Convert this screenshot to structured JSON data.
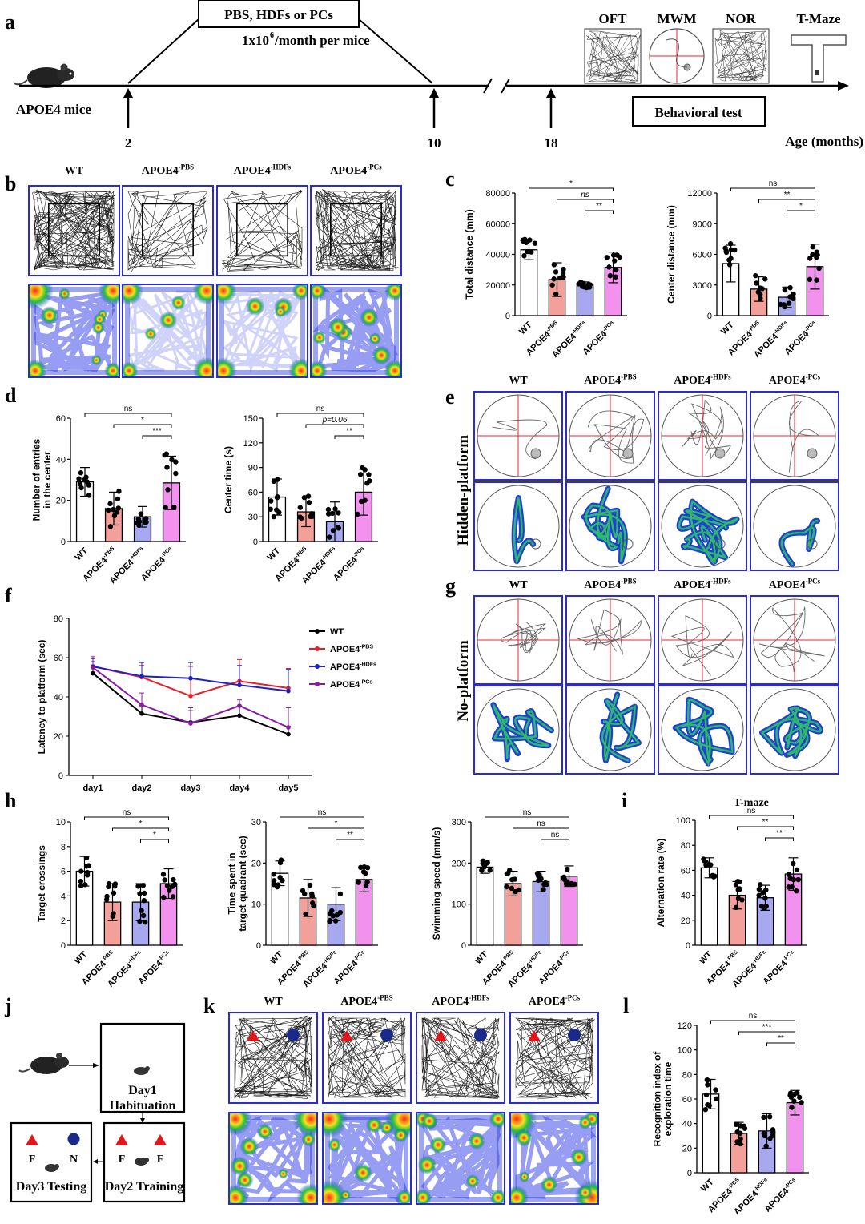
{
  "panel_letters": [
    "a",
    "b",
    "c",
    "d",
    "e",
    "f",
    "g",
    "h",
    "i",
    "j",
    "k",
    "l"
  ],
  "panel_a": {
    "mouse_label": "APOE4 mice",
    "treatment_line1": "PBS, HDFs or PCs",
    "treatment_dose": "1x10",
    "treatment_dose_exp": "6",
    "treatment_dose_rest": "/month per mice",
    "timepoints": [
      "2",
      "10",
      "18"
    ],
    "tests": [
      "OFT",
      "MWM",
      "NOR",
      "T-Maze"
    ],
    "behavior_label": "Behavioral test",
    "age_label": "Age (months)"
  },
  "group_names": {
    "wt": "WT",
    "base": "APOE4",
    "pbs": "-PBS",
    "hdf": "-HDFs",
    "pc": "-PCs"
  },
  "row_labels": {
    "e": "Hidden-platform",
    "g": "No-platform"
  },
  "panel_j": {
    "day1_a": "Day1",
    "day1_b": "Habituation",
    "day2": "Day2 Training",
    "day3": "Day3 Testing",
    "obj_f": "F",
    "obj_n": "N"
  },
  "colors": {
    "wt": "#ffffff",
    "pbs": "#f4a09a",
    "hdf": "#a7a8f0",
    "pc": "#f292ee",
    "frame": "#2a2ad6",
    "line_wt": "#000000",
    "line_pbs": "#e8202a",
    "line_hdf": "#2020c8",
    "line_pc": "#8a1aa6"
  },
  "chart_data": [
    {
      "id": "c1",
      "type": "bar",
      "ylabel": "Total distance (mm)",
      "ylim": [
        0,
        80000
      ],
      "yticks": [
        0,
        20000,
        40000,
        60000,
        80000
      ],
      "categories": [
        "WT",
        "APOE4-PBS",
        "APOE4-HDFs",
        "APOE4-PCs"
      ],
      "values": [
        43000,
        23500,
        20000,
        31500
      ],
      "errors": [
        6500,
        11000,
        2000,
        10000
      ],
      "significance": [
        {
          "from": 0,
          "to": 3,
          "label": "*"
        },
        {
          "from": 1,
          "to": 3,
          "label": "ns"
        },
        {
          "from": 2,
          "to": 3,
          "label": "**"
        }
      ]
    },
    {
      "id": "c2",
      "type": "bar",
      "ylabel": "Center distance (mm)",
      "ylim": [
        0,
        12000
      ],
      "yticks": [
        0,
        3000,
        6000,
        9000,
        12000
      ],
      "categories": [
        "WT",
        "APOE4-PBS",
        "APOE4-HDFs",
        "APOE4-PCs"
      ],
      "values": [
        5100,
        2600,
        1800,
        4800
      ],
      "errors": [
        1800,
        1200,
        1000,
        2200
      ],
      "significance": [
        {
          "from": 0,
          "to": 3,
          "label": "ns"
        },
        {
          "from": 1,
          "to": 3,
          "label": "**"
        },
        {
          "from": 2,
          "to": 3,
          "label": "*"
        }
      ]
    },
    {
      "id": "d1",
      "type": "bar",
      "ylabel": "Number of entries in the center",
      "ylim": [
        0,
        60
      ],
      "yticks": [
        0,
        20,
        40,
        60
      ],
      "categories": [
        "WT",
        "APOE4-PBS",
        "APOE4-HDFs",
        "APOE4-PCs"
      ],
      "values": [
        29,
        16,
        12,
        28.5
      ],
      "errors": [
        7,
        8,
        5,
        13
      ],
      "significance": [
        {
          "from": 0,
          "to": 3,
          "label": "ns"
        },
        {
          "from": 1,
          "to": 3,
          "label": "*"
        },
        {
          "from": 2,
          "to": 3,
          "label": "***"
        }
      ]
    },
    {
      "id": "d2",
      "type": "bar",
      "ylabel": "Center time (s)",
      "ylim": [
        0,
        150
      ],
      "yticks": [
        0,
        30,
        60,
        90,
        120,
        150
      ],
      "categories": [
        "WT",
        "APOE4-PBS",
        "APOE4-HDFs",
        "APOE4-PCs"
      ],
      "values": [
        54,
        36,
        24,
        60
      ],
      "errors": [
        22,
        18,
        24,
        28
      ],
      "significance": [
        {
          "from": 0,
          "to": 3,
          "label": "ns"
        },
        {
          "from": 1,
          "to": 3,
          "label": "p=0.06"
        },
        {
          "from": 2,
          "to": 3,
          "label": "**"
        }
      ]
    },
    {
      "id": "f",
      "type": "line",
      "xlabel": "",
      "ylabel": "Latency to platform (sec)",
      "ylim": [
        0,
        80
      ],
      "yticks": [
        0,
        20,
        40,
        60,
        80
      ],
      "x": [
        "day1",
        "day2",
        "day3",
        "day4",
        "day5"
      ],
      "series": [
        {
          "name": "WT",
          "values": [
            52,
            31.5,
            27,
            30.5,
            21
          ],
          "errors": [
            3,
            4,
            6,
            5,
            4
          ]
        },
        {
          "name": "APOE4-PBS",
          "values": [
            55.5,
            50,
            40.5,
            48,
            44.5
          ],
          "errors": [
            5,
            6,
            15,
            11,
            10
          ]
        },
        {
          "name": "APOE4-HDFs",
          "values": [
            55.5,
            50.5,
            49.5,
            46,
            43
          ],
          "errors": [
            4,
            7,
            8,
            10,
            11
          ]
        },
        {
          "name": "APOE4-PCs",
          "values": [
            55,
            36,
            26.5,
            35.5,
            24.5
          ],
          "errors": [
            3,
            6,
            8,
            3,
            10
          ]
        }
      ]
    },
    {
      "id": "h1",
      "type": "bar",
      "ylabel": "Target crossings",
      "ylim": [
        0,
        10
      ],
      "yticks": [
        0,
        2,
        4,
        6,
        8,
        10
      ],
      "categories": [
        "WT",
        "APOE4-PBS",
        "APOE4-HDFs",
        "APOE4-PCs"
      ],
      "values": [
        6,
        3.5,
        3.5,
        5
      ],
      "errors": [
        1.2,
        1.5,
        1.5,
        1.2
      ],
      "significance": [
        {
          "from": 0,
          "to": 3,
          "label": "ns"
        },
        {
          "from": 1,
          "to": 3,
          "label": "*"
        },
        {
          "from": 2,
          "to": 3,
          "label": "*"
        }
      ]
    },
    {
      "id": "h2",
      "type": "bar",
      "ylabel": "Time spent in target quadrant (sec)",
      "ylim": [
        0,
        30
      ],
      "yticks": [
        0,
        10,
        20,
        30
      ],
      "categories": [
        "WT",
        "APOE4-PBS",
        "APOE4-HDFs",
        "APOE4-PCs"
      ],
      "values": [
        17.5,
        11.5,
        10,
        16
      ],
      "errors": [
        3,
        4.5,
        4,
        3
      ],
      "significance": [
        {
          "from": 0,
          "to": 3,
          "label": "ns"
        },
        {
          "from": 1,
          "to": 3,
          "label": "*"
        },
        {
          "from": 2,
          "to": 3,
          "label": "**"
        }
      ]
    },
    {
      "id": "h3",
      "type": "bar",
      "ylabel": "Swimming speed (mm/s)",
      "ylim": [
        0,
        300
      ],
      "yticks": [
        0,
        100,
        200,
        300
      ],
      "categories": [
        "WT",
        "APOE4-PBS",
        "APOE4-HDFs",
        "APOE4-PCs"
      ],
      "values": [
        190,
        150,
        155,
        168
      ],
      "errors": [
        15,
        30,
        25,
        25
      ],
      "significance": [
        {
          "from": 0,
          "to": 3,
          "label": "ns"
        },
        {
          "from": 1,
          "to": 3,
          "label": "ns"
        },
        {
          "from": 2,
          "to": 3,
          "label": "ns"
        }
      ]
    },
    {
      "id": "i",
      "type": "bar",
      "title": "T-maze",
      "ylabel": "Alternation rate (%)",
      "ylim": [
        0,
        100
      ],
      "yticks": [
        0,
        20,
        40,
        60,
        80,
        100
      ],
      "categories": [
        "WT",
        "APOE4-PBS",
        "APOE4-HDFs",
        "APOE4-PCs"
      ],
      "values": [
        62,
        40,
        38,
        57
      ],
      "errors": [
        8,
        11,
        10,
        13
      ],
      "significance": [
        {
          "from": 0,
          "to": 3,
          "label": "ns"
        },
        {
          "from": 1,
          "to": 3,
          "label": "**"
        },
        {
          "from": 2,
          "to": 3,
          "label": "**"
        }
      ]
    },
    {
      "id": "l",
      "type": "bar",
      "ylabel": "Recognition index of exploration time",
      "ylim": [
        0,
        120
      ],
      "yticks": [
        0,
        20,
        40,
        60,
        80,
        100,
        120
      ],
      "categories": [
        "WT",
        "APOE4-PBS",
        "APOE4-HDFs",
        "APOE4-PCs"
      ],
      "values": [
        64,
        32,
        34,
        57
      ],
      "errors": [
        12,
        9,
        14,
        10
      ],
      "significance": [
        {
          "from": 0,
          "to": 3,
          "label": "ns"
        },
        {
          "from": 1,
          "to": 3,
          "label": "***"
        },
        {
          "from": 2,
          "to": 3,
          "label": "**"
        }
      ]
    }
  ]
}
